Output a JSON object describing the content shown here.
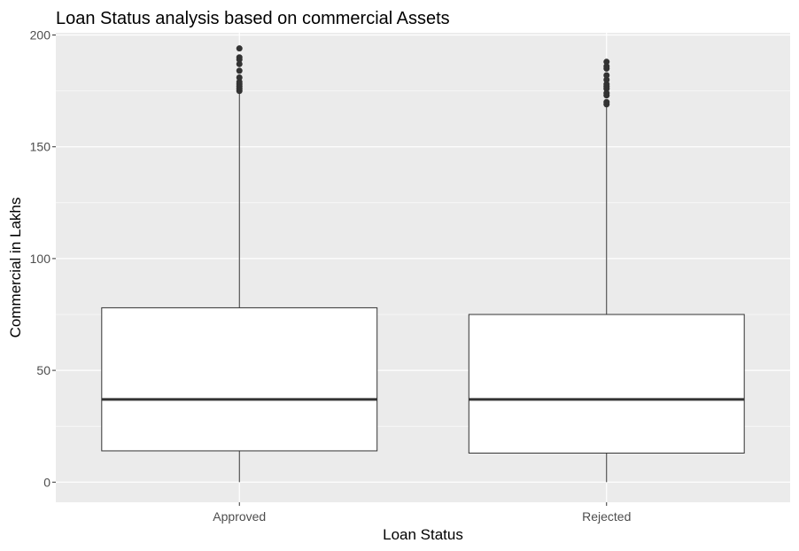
{
  "chart_data": {
    "type": "boxplot",
    "title": "Loan Status analysis based on commercial Assets",
    "xlabel": "Loan Status",
    "ylabel": "Commercial in Lakhs",
    "categories": [
      "Approved",
      "Rejected"
    ],
    "ylim": [
      -9,
      201
    ],
    "yticks": [
      0,
      50,
      100,
      150,
      200
    ],
    "boxes": [
      {
        "category": "Approved",
        "min": 0,
        "q1": 14,
        "median": 37,
        "q3": 78,
        "max": 174,
        "outliers": [
          175,
          176,
          177,
          178,
          179,
          181,
          184,
          187,
          189,
          190,
          194
        ]
      },
      {
        "category": "Rejected",
        "min": 0,
        "q1": 13,
        "median": 37,
        "q3": 75,
        "max": 168,
        "outliers": [
          169,
          170,
          173,
          174,
          176,
          177,
          178,
          180,
          182,
          185,
          186,
          188
        ]
      }
    ],
    "colors": {
      "panel_background": "#ebebeb",
      "grid": "#ffffff",
      "box_fill": "#ffffff",
      "box_stroke": "#333333",
      "outlier": "#333333"
    },
    "grid": true,
    "legend": "none"
  }
}
